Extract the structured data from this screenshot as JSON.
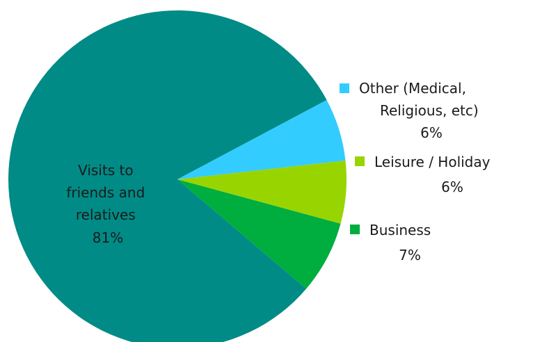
{
  "chart_data": {
    "type": "pie",
    "title": "",
    "slices": [
      {
        "label_lines": [
          "Visits to",
          "friends and",
          "relatives"
        ],
        "percent_label": "81%",
        "value": 81,
        "color": "#008b86"
      },
      {
        "label_lines": [
          "Business"
        ],
        "percent_label": "7%",
        "value": 7,
        "color": "#00ad3f"
      },
      {
        "label_lines": [
          "Leisure / Holiday"
        ],
        "percent_label": "6%",
        "value": 6,
        "color": "#98d500"
      },
      {
        "label_lines": [
          "Other (Medical,",
          "Religious, etc)"
        ],
        "percent_label": "6%",
        "value": 6,
        "color": "#33ccff"
      }
    ]
  }
}
